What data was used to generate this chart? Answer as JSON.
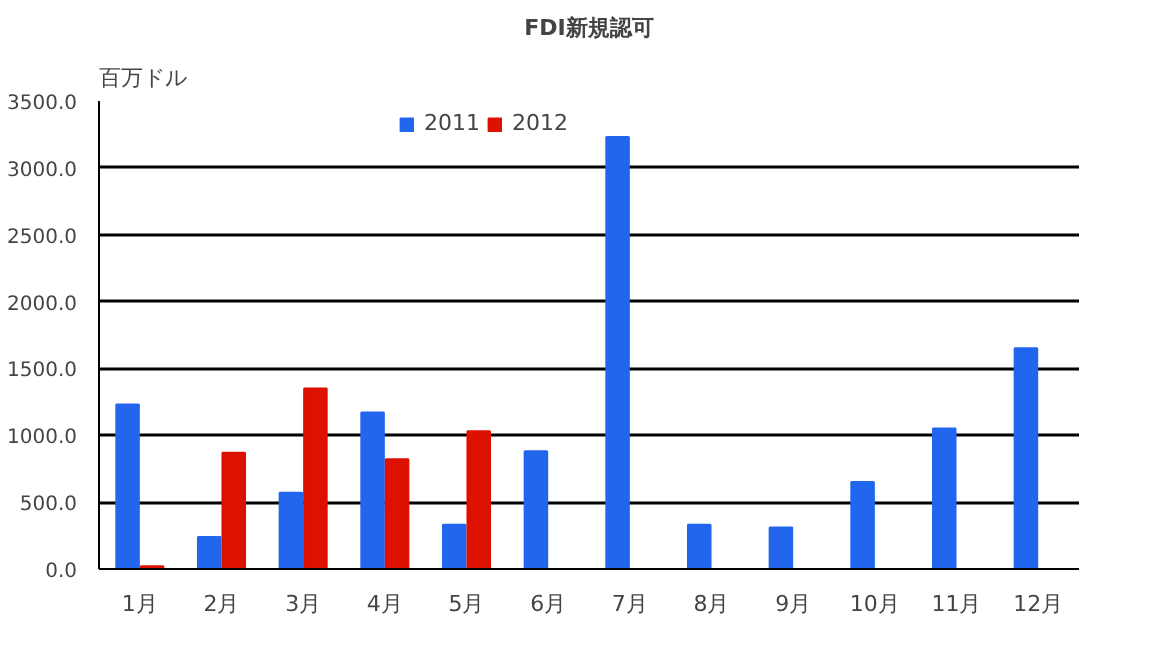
{
  "chart_data": {
    "type": "bar",
    "title": "FDI新規認可",
    "ylabel": "百万ドル",
    "categories": [
      "1月",
      "2月",
      "3月",
      "4月",
      "5月",
      "6月",
      "7月",
      "8月",
      "9月",
      "10月",
      "11月",
      "12月"
    ],
    "series": [
      {
        "name": "2011",
        "color": "#2266ee",
        "values": [
          1230,
          240,
          570,
          1170,
          330,
          880,
          3230,
          330,
          310,
          650,
          1050,
          1650
        ]
      },
      {
        "name": "2012",
        "color": "#dd1100",
        "values": [
          20,
          870,
          1350,
          820,
          1030,
          null,
          null,
          null,
          null,
          null,
          null,
          null
        ]
      }
    ],
    "ylim": [
      0,
      3500
    ],
    "yticks": [
      {
        "value": 0,
        "label": "0.0"
      },
      {
        "value": 500,
        "label": "500.0"
      },
      {
        "value": 1000,
        "label": "1000.0"
      },
      {
        "value": 1500,
        "label": "1500.0"
      },
      {
        "value": 2000,
        "label": "2000.0"
      },
      {
        "value": 2500,
        "label": "2500.0"
      },
      {
        "value": 3000,
        "label": "3000.0"
      },
      {
        "value": 3500,
        "label": "3500.0"
      }
    ],
    "grid": "y",
    "legend": "top"
  }
}
